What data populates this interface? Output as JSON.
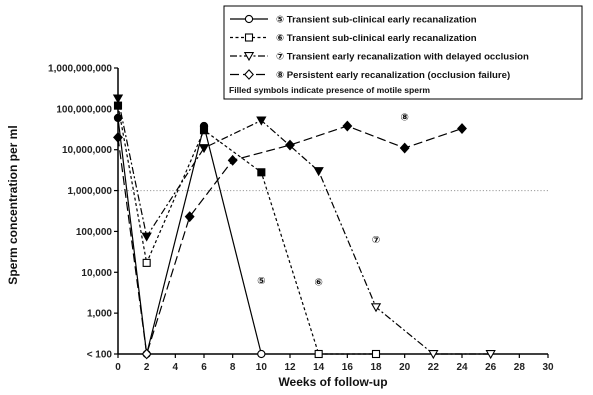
{
  "chart_data": {
    "type": "line",
    "xlabel": "Weeks of follow-up",
    "ylabel": "Sperm concentration per ml",
    "x_range": [
      0,
      30
    ],
    "x_ticks": [
      "0",
      "2",
      "4",
      "6",
      "8",
      "10",
      "12",
      "14",
      "16",
      "18",
      "20",
      "22",
      "24",
      "26",
      "28",
      "30"
    ],
    "y_scale": "log",
    "y_range": [
      100,
      1000000000
    ],
    "y_ticks": [
      {
        "value": 100,
        "label": "< 100"
      },
      {
        "value": 1000,
        "label": "1,000"
      },
      {
        "value": 10000,
        "label": "10,000"
      },
      {
        "value": 100000,
        "label": "100,000"
      },
      {
        "value": 1000000,
        "label": "1,000,000"
      },
      {
        "value": 10000000,
        "label": "10,000,000"
      },
      {
        "value": 100000000,
        "label": "100,000,000"
      },
      {
        "value": 1000000000,
        "label": "1,000,000,000"
      }
    ],
    "reference_line": {
      "value": 1000000,
      "style": "dotted"
    },
    "legend_position": "top-right",
    "legend_note": "Filled symbols indicate presence of motile sperm",
    "series": [
      {
        "id": "s5",
        "name": "⑤ Transient sub-clinical early recanalization",
        "tag": "⑤",
        "marker": "circle",
        "dash": "solid",
        "points": [
          {
            "x": 0,
            "y": 60000000,
            "filled": true
          },
          {
            "x": 2,
            "y": 100,
            "filled": false
          },
          {
            "x": 6,
            "y": 38000000,
            "filled": true
          },
          {
            "x": 10,
            "y": 100,
            "filled": false
          }
        ]
      },
      {
        "id": "s6",
        "name": "⑥ Transient sub-clinical early recanalization",
        "tag": "⑥",
        "marker": "square",
        "dash": "dashed",
        "points": [
          {
            "x": 0,
            "y": 120000000,
            "filled": true
          },
          {
            "x": 2,
            "y": 17000,
            "filled": false
          },
          {
            "x": 6,
            "y": 30000000,
            "filled": true
          },
          {
            "x": 10,
            "y": 2800000,
            "filled": true
          },
          {
            "x": 14,
            "y": 100,
            "filled": false
          },
          {
            "x": 18,
            "y": 100,
            "filled": false
          }
        ]
      },
      {
        "id": "s7",
        "name": "⑦ Transient early recanalization with delayed occlusion",
        "tag": "⑦",
        "marker": "triangle-down",
        "dash": "dash-dot",
        "points": [
          {
            "x": 0,
            "y": 180000000,
            "filled": true
          },
          {
            "x": 2,
            "y": 75000,
            "filled": true
          },
          {
            "x": 6,
            "y": 11000000,
            "filled": true
          },
          {
            "x": 10,
            "y": 52000000,
            "filled": true
          },
          {
            "x": 14,
            "y": 3000000,
            "filled": true
          },
          {
            "x": 18,
            "y": 1400,
            "filled": false
          },
          {
            "x": 22,
            "y": 100,
            "filled": false
          },
          {
            "x": 26,
            "y": 100,
            "filled": false
          }
        ]
      },
      {
        "id": "s8",
        "name": "⑧ Persistent early recanalization (occlusion failure)",
        "tag": "⑧",
        "marker": "diamond",
        "dash": "long-dash",
        "points": [
          {
            "x": 0,
            "y": 20000000,
            "filled": true
          },
          {
            "x": 2,
            "y": 100,
            "filled": false
          },
          {
            "x": 5,
            "y": 230000,
            "filled": true
          },
          {
            "x": 8,
            "y": 5500000,
            "filled": true
          },
          {
            "x": 12,
            "y": 13000000,
            "filled": true
          },
          {
            "x": 16,
            "y": 38000000,
            "filled": true
          },
          {
            "x": 20,
            "y": 11000000,
            "filled": true
          },
          {
            "x": 24,
            "y": 33000000,
            "filled": true
          }
        ]
      }
    ],
    "curve_tags": [
      {
        "series": "s5",
        "x": 10,
        "y": 6500
      },
      {
        "series": "s6",
        "x": 14,
        "y": 6000
      },
      {
        "series": "s7",
        "x": 18,
        "y": 65000
      },
      {
        "series": "s8",
        "x": 20,
        "y": 65000000
      }
    ]
  }
}
